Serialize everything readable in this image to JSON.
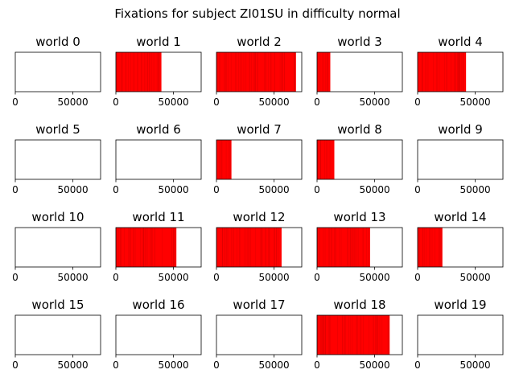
{
  "suptitle": "Fixations for subject ZI01SU in difficulty normal",
  "chart_data": {
    "type": "fixation-strips",
    "xlim": [
      0,
      74000
    ],
    "xticks": [
      0,
      50000
    ],
    "xtick_labels": [
      "0",
      "50000"
    ],
    "fill_color": "#ff0000",
    "panels": [
      {
        "title": "world 0",
        "extent": 0
      },
      {
        "title": "world 1",
        "extent": 39500
      },
      {
        "title": "world 2",
        "extent": 69000
      },
      {
        "title": "world 3",
        "extent": 11500
      },
      {
        "title": "world 4",
        "extent": 42000
      },
      {
        "title": "world 5",
        "extent": 0
      },
      {
        "title": "world 6",
        "extent": 0
      },
      {
        "title": "world 7",
        "extent": 13000
      },
      {
        "title": "world 8",
        "extent": 15000
      },
      {
        "title": "world 9",
        "extent": 0
      },
      {
        "title": "world 10",
        "extent": 0
      },
      {
        "title": "world 11",
        "extent": 52500
      },
      {
        "title": "world 12",
        "extent": 56500
      },
      {
        "title": "world 13",
        "extent": 46000
      },
      {
        "title": "world 14",
        "extent": 21500
      },
      {
        "title": "world 15",
        "extent": 0
      },
      {
        "title": "world 16",
        "extent": 0
      },
      {
        "title": "world 17",
        "extent": 0
      },
      {
        "title": "world 18",
        "extent": 63000
      },
      {
        "title": "world 19",
        "extent": 0
      }
    ]
  }
}
